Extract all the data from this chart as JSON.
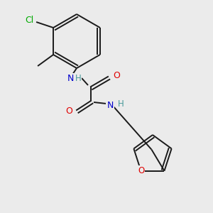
{
  "background_color": "#ebebeb",
  "bond_color": "#1a1a1a",
  "atom_colors": {
    "O": "#e00000",
    "N": "#0000cc",
    "Cl": "#00aa00",
    "C": "#1a1a1a",
    "H": "#4a9a9a"
  },
  "figsize": [
    3.0,
    3.0
  ],
  "dpi": 100,
  "lw": 1.4
}
